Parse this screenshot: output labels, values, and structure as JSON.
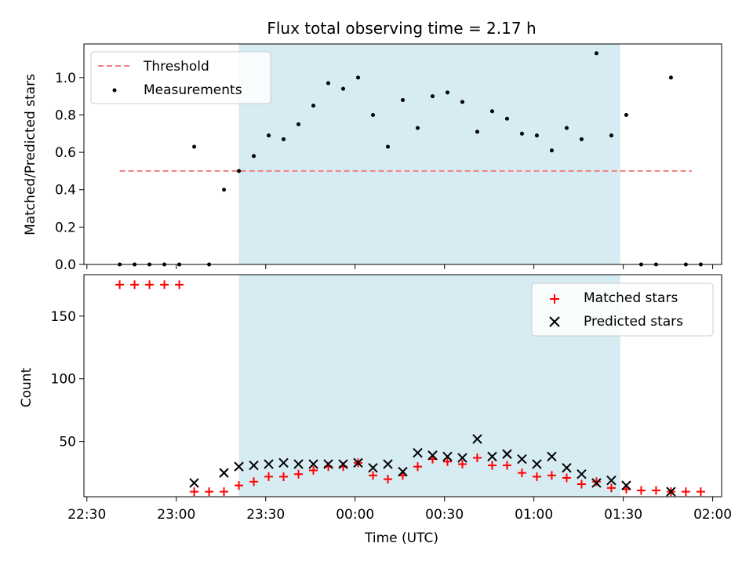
{
  "chart_data": {
    "title": "Flux total observing time = 2.17 h",
    "xlabel": "Time (UTC)",
    "x_ticks": [
      {
        "t": -90,
        "label": "22:30"
      },
      {
        "t": -60,
        "label": "23:00"
      },
      {
        "t": -30,
        "label": "23:30"
      },
      {
        "t": 0,
        "label": "00:00"
      },
      {
        "t": 30,
        "label": "00:30"
      },
      {
        "t": 60,
        "label": "01:00"
      },
      {
        "t": 90,
        "label": "01:30"
      },
      {
        "t": 120,
        "label": "02:00"
      }
    ],
    "xlim": [
      "22:29",
      "02:03"
    ],
    "shaded_interval": [
      "23:21",
      "01:29"
    ],
    "colors": {
      "shade": "#add8e6",
      "threshold": "#f08080",
      "measurements": "#000000",
      "matched": "#ff0000",
      "predicted": "#000000"
    },
    "panels": [
      {
        "type": "scatter",
        "ylabel": "Matched/Predicted stars",
        "ylim": [
          0,
          1.18
        ],
        "y_ticks": [
          "0.0",
          "0.2",
          "0.4",
          "0.6",
          "0.8",
          "1.0"
        ],
        "y_tick_values": [
          0,
          0.2,
          0.4,
          0.6,
          0.8,
          1.0
        ],
        "legend": {
          "position": "upper-left",
          "entries": [
            "Threshold",
            "Measurements"
          ]
        },
        "threshold": {
          "name": "Threshold",
          "y": 0.5,
          "x": [
            "22:41",
            "01:53"
          ]
        },
        "series": [
          {
            "name": "Measurements",
            "points": [
              [
                "22:41",
                0.0
              ],
              [
                "22:46",
                0.0
              ],
              [
                "22:51",
                0.0
              ],
              [
                "22:56",
                0.0
              ],
              [
                "23:01",
                0.0
              ],
              [
                "23:06",
                0.63
              ],
              [
                "23:11",
                0.0
              ],
              [
                "23:16",
                0.4
              ],
              [
                "23:21",
                0.5
              ],
              [
                "23:26",
                0.58
              ],
              [
                "23:31",
                0.69
              ],
              [
                "23:36",
                0.67
              ],
              [
                "23:41",
                0.75
              ],
              [
                "23:46",
                0.85
              ],
              [
                "23:51",
                0.97
              ],
              [
                "23:56",
                0.94
              ],
              [
                "00:01",
                1.0
              ],
              [
                "00:06",
                0.8
              ],
              [
                "00:11",
                0.63
              ],
              [
                "00:16",
                0.88
              ],
              [
                "00:21",
                0.73
              ],
              [
                "00:26",
                0.9
              ],
              [
                "00:31",
                0.92
              ],
              [
                "00:36",
                0.87
              ],
              [
                "00:41",
                0.71
              ],
              [
                "00:46",
                0.82
              ],
              [
                "00:51",
                0.78
              ],
              [
                "00:56",
                0.7
              ],
              [
                "01:01",
                0.69
              ],
              [
                "01:06",
                0.61
              ],
              [
                "01:11",
                0.73
              ],
              [
                "01:16",
                0.67
              ],
              [
                "01:21",
                1.13
              ],
              [
                "01:26",
                0.69
              ],
              [
                "01:31",
                0.8
              ],
              [
                "01:36",
                0.0
              ],
              [
                "01:41",
                0.0
              ],
              [
                "01:46",
                1.0
              ],
              [
                "01:51",
                0.0
              ],
              [
                "01:56",
                0.0
              ]
            ]
          }
        ]
      },
      {
        "type": "scatter",
        "ylabel": "Count",
        "ylim": [
          6,
          183
        ],
        "y_ticks": [
          "50",
          "100",
          "150"
        ],
        "y_tick_values": [
          50,
          100,
          150
        ],
        "legend": {
          "position": "upper-right",
          "entries": [
            "Matched stars",
            "Predicted stars"
          ]
        },
        "series": [
          {
            "name": "Matched stars",
            "marker": "+",
            "points": [
              [
                "22:41",
                175
              ],
              [
                "22:46",
                175
              ],
              [
                "22:51",
                175
              ],
              [
                "22:56",
                175
              ],
              [
                "23:01",
                175
              ],
              [
                "23:06",
                10
              ],
              [
                "23:11",
                10
              ],
              [
                "23:16",
                10
              ],
              [
                "23:21",
                15
              ],
              [
                "23:26",
                18
              ],
              [
                "23:31",
                22
              ],
              [
                "23:36",
                22
              ],
              [
                "23:41",
                24
              ],
              [
                "23:46",
                27
              ],
              [
                "23:51",
                30
              ],
              [
                "23:56",
                30
              ],
              [
                "00:01",
                33
              ],
              [
                "00:06",
                23
              ],
              [
                "00:11",
                20
              ],
              [
                "00:16",
                23
              ],
              [
                "00:21",
                30
              ],
              [
                "00:26",
                36
              ],
              [
                "00:31",
                34
              ],
              [
                "00:36",
                32
              ],
              [
                "00:41",
                37
              ],
              [
                "00:46",
                31
              ],
              [
                "00:51",
                31
              ],
              [
                "00:56",
                25
              ],
              [
                "01:01",
                22
              ],
              [
                "01:06",
                23
              ],
              [
                "01:11",
                21
              ],
              [
                "01:16",
                16
              ],
              [
                "01:21",
                18
              ],
              [
                "01:26",
                13
              ],
              [
                "01:31",
                12
              ],
              [
                "01:36",
                11
              ],
              [
                "01:41",
                11
              ],
              [
                "01:46",
                10
              ],
              [
                "01:51",
                10
              ],
              [
                "01:56",
                10
              ]
            ]
          },
          {
            "name": "Predicted stars",
            "marker": "x",
            "points": [
              [
                "23:06",
                17
              ],
              [
                "23:16",
                25
              ],
              [
                "23:21",
                30
              ],
              [
                "23:26",
                31
              ],
              [
                "23:31",
                32
              ],
              [
                "23:36",
                33
              ],
              [
                "23:41",
                32
              ],
              [
                "23:46",
                32
              ],
              [
                "23:51",
                32
              ],
              [
                "23:56",
                32
              ],
              [
                "00:01",
                33
              ],
              [
                "00:06",
                29
              ],
              [
                "00:11",
                32
              ],
              [
                "00:16",
                26
              ],
              [
                "00:21",
                41
              ],
              [
                "00:26",
                39
              ],
              [
                "00:31",
                38
              ],
              [
                "00:36",
                37
              ],
              [
                "00:41",
                52
              ],
              [
                "00:46",
                38
              ],
              [
                "00:51",
                40
              ],
              [
                "00:56",
                36
              ],
              [
                "01:01",
                32
              ],
              [
                "01:06",
                38
              ],
              [
                "01:11",
                29
              ],
              [
                "01:16",
                24
              ],
              [
                "01:21",
                17
              ],
              [
                "01:26",
                19
              ],
              [
                "01:31",
                15
              ],
              [
                "01:46",
                10
              ]
            ]
          }
        ]
      }
    ]
  }
}
